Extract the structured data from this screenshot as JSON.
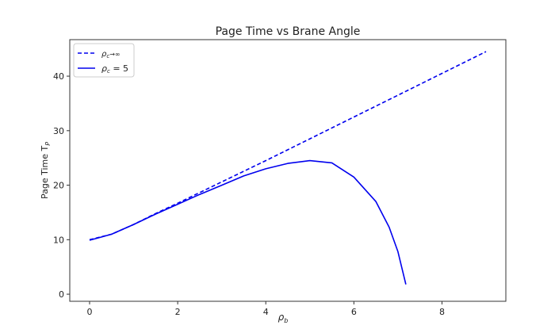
{
  "chart_data": {
    "type": "line",
    "title": "Page Time vs Brane Angle",
    "xlabel": "ρ",
    "xlabel_sub": "b",
    "ylabel": "Page Time T",
    "ylabel_sub": "P",
    "xlim": [
      -0.45,
      9.45
    ],
    "ylim": [
      -1.3,
      46.7
    ],
    "xticks": [
      0,
      2,
      4,
      6,
      8
    ],
    "yticks": [
      0,
      10,
      20,
      30,
      40
    ],
    "grid": false,
    "legend_position": "top-left",
    "series": [
      {
        "name": "ρc→∞",
        "name_main": "ρ",
        "name_sub": "c",
        "name_rest": "→∞",
        "style": "dashed",
        "color": "#0000ee",
        "x": [
          0,
          0.5,
          1,
          1.5,
          2,
          3,
          4,
          5,
          6,
          7,
          8,
          9
        ],
        "y": [
          10,
          11,
          12.8,
          14.8,
          16.7,
          20.6,
          24.5,
          28.5,
          32.5,
          36.5,
          40.5,
          44.5
        ]
      },
      {
        "name": "ρc = 5",
        "name_main": "ρ",
        "name_sub": "c",
        "name_rest": " = 5",
        "style": "solid",
        "color": "#0000ee",
        "x": [
          0,
          0.5,
          1,
          1.5,
          2,
          2.5,
          3,
          3.5,
          4,
          4.5,
          5,
          5.5,
          6,
          6.5,
          6.8,
          7,
          7.18
        ],
        "y": [
          9.9,
          11,
          12.8,
          14.7,
          16.5,
          18.3,
          20,
          21.7,
          23,
          24,
          24.5,
          24.1,
          21.5,
          17,
          12.3,
          7.8,
          1.8
        ]
      }
    ]
  }
}
